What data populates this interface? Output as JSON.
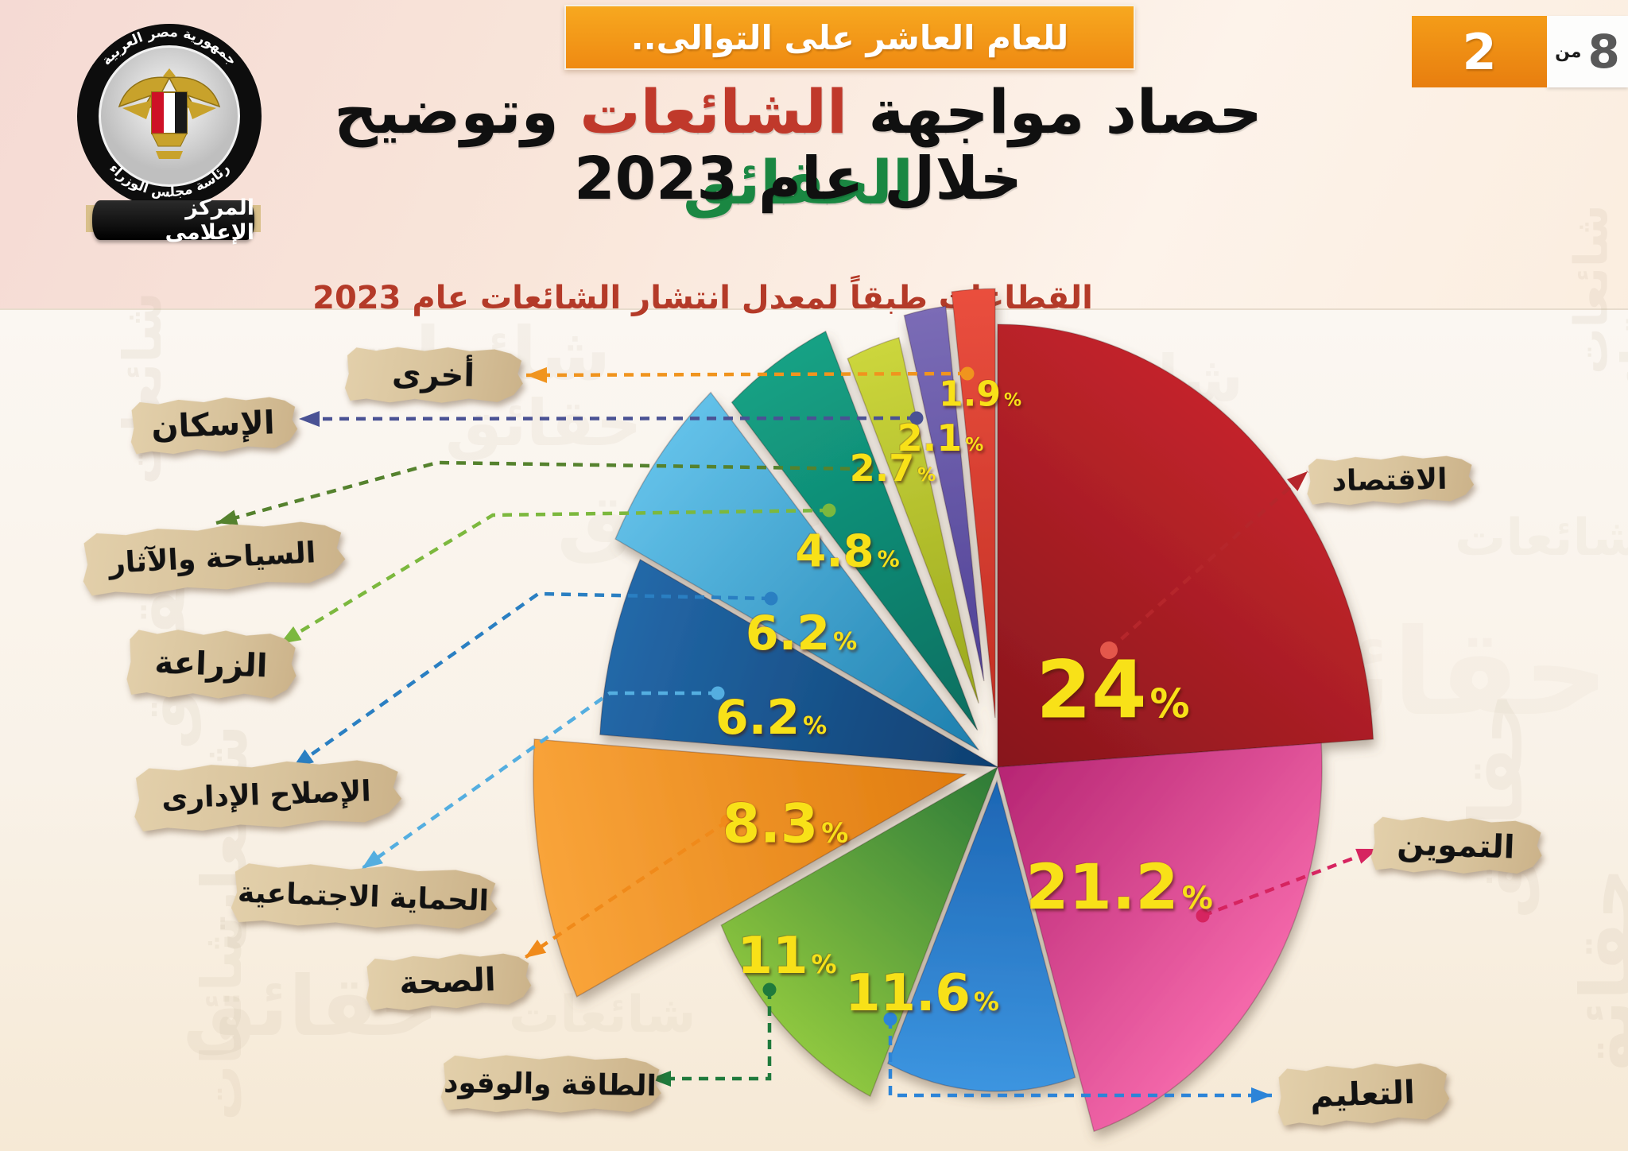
{
  "pager": {
    "current": "2",
    "of_label": "من",
    "total": "8"
  },
  "banner": {
    "text": "للعام العاشر على التوالى.."
  },
  "logo": {
    "country_text": "جمهورية مصر العربية",
    "authority_text": "رئاسة مجلس الوزراء",
    "ribbon_text": "المركز الإعلامى",
    "flag_colors": [
      "#ce1126",
      "#ffffff",
      "#000000"
    ],
    "eagle_gold": "#c8a22b"
  },
  "title": {
    "segments": [
      {
        "text": "حصاد مواجهة ",
        "color": "#101010"
      },
      {
        "text": "الشائعات",
        "color": "#c0392b"
      },
      {
        "text": " وتوضيح ",
        "color": "#101010"
      },
      {
        "text": "الحقائق",
        "color": "#1a8742"
      }
    ],
    "line2": "خلال عام 2023"
  },
  "subtitle": {
    "text": "القطاعات طبقاً لمعدل انتشار الشائعات عام 2023",
    "color": "#b43a28"
  },
  "watermark_words": [
    "شائعات",
    "حقائق"
  ],
  "chart_data": {
    "type": "pie",
    "title": "القطاعات طبقاً لمعدل انتشار الشائعات عام 2023",
    "year": "2023",
    "value_unit": "%",
    "direction": "clockwise",
    "start_angle_deg": 0,
    "total": 100,
    "percent_label_color": "#f8e118",
    "slices": [
      {
        "label": "الاقتصاد",
        "value": 24,
        "display": "24",
        "color": "#c2242b",
        "color_dark": "#87161c",
        "connector_color": "#b5262b"
      },
      {
        "label": "التموين",
        "value": 21.2,
        "display": "21.2",
        "color": "#f468aa",
        "color_dark": "#b62573",
        "connector_color": "#d62460"
      },
      {
        "label": "التعليم",
        "value": 11.6,
        "display": "11.6",
        "color": "#3c95e0",
        "color_dark": "#1d66b4",
        "connector_color": "#2c84d8"
      },
      {
        "label": "الطاقة والوقود",
        "value": 11,
        "display": "11",
        "color": "#8dc63f",
        "color_dark": "#2c7a38",
        "connector_color": "#1f7a3c"
      },
      {
        "label": "الصحة",
        "value": 8.3,
        "display": "8.3",
        "color": "#f9a43a",
        "color_dark": "#e07c0f",
        "connector_color": "#f08a1a"
      },
      {
        "label": "الحماية الاجتماعية",
        "value": 6.2,
        "display": "6.2",
        "color": "#2368a8",
        "color_dark": "#0f3f70",
        "connector_color": "#54aee0"
      },
      {
        "label": "الإصلاح الإدارى",
        "value": 6.2,
        "display": "6.2",
        "color": "#62c0e8",
        "color_dark": "#1d7fae",
        "connector_color": "#2a7fc2"
      },
      {
        "label": "الزراعة",
        "value": 4.8,
        "display": "4.8",
        "color": "#14a184",
        "color_dark": "#0a6e60",
        "connector_color": "#7cb83e"
      },
      {
        "label": "السياحة والآثار",
        "value": 2.7,
        "display": "2.7",
        "color": "#ccd63c",
        "color_dark": "#9aa81e",
        "connector_color": "#55822e"
      },
      {
        "label": "الإسكان",
        "value": 2.1,
        "display": "2.1",
        "color": "#7b6cb6",
        "color_dark": "#4f4196",
        "connector_color": "#4a5294"
      },
      {
        "label": "أخرى",
        "value": 1.9,
        "display": "1.9",
        "color": "#ea4f3e",
        "color_dark": "#c22e24",
        "connector_color": "#f0941e"
      }
    ]
  }
}
